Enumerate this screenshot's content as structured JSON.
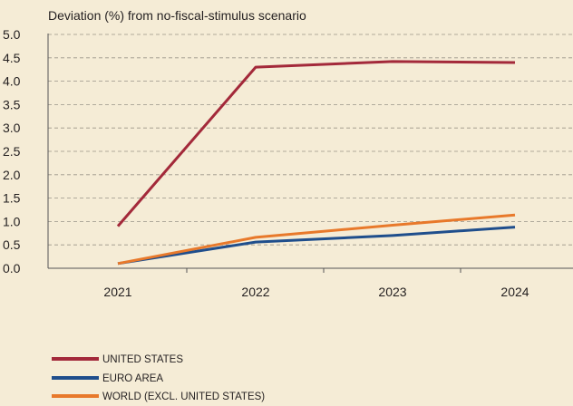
{
  "chart_data": {
    "type": "line",
    "title": "",
    "ylabel": "Deviation (%) from no-fiscal-stimulus scenario",
    "xlabel": "",
    "categories": [
      "2021",
      "2022",
      "2023",
      "2024"
    ],
    "ylim": [
      0,
      5.0
    ],
    "yticks": [
      "0.0",
      "0.5",
      "1.0",
      "1.5",
      "2.0",
      "2.5",
      "3.0",
      "3.5",
      "4.0",
      "4.5",
      "5.0"
    ],
    "grid": "horizontal dashed",
    "legend_position": "bottom-left",
    "series": [
      {
        "name": "UNITED STATES",
        "values": [
          0.9,
          4.3,
          4.42,
          4.4
        ],
        "color": "#a3293a"
      },
      {
        "name": "EURO AREA",
        "values": [
          0.1,
          0.56,
          0.7,
          0.88
        ],
        "color": "#1f4e8c"
      },
      {
        "name": "WORLD (EXCL. UNITED STATES)",
        "values": [
          0.1,
          0.66,
          0.92,
          1.14
        ],
        "color": "#e8792b"
      }
    ]
  }
}
